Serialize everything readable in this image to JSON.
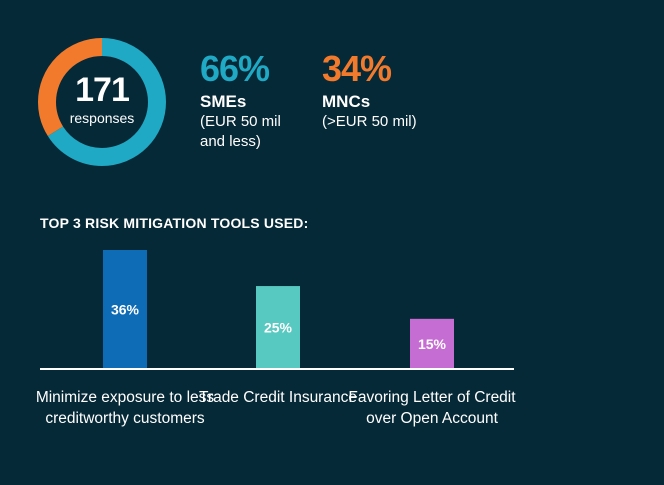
{
  "summary": {
    "responses_count": "171",
    "responses_label": "responses",
    "sme_share": 66,
    "mnc_share": 34
  },
  "segments": {
    "sme": {
      "pct": "66%",
      "name": "SMEs",
      "desc": "(EUR 50 mil and less)",
      "color": "#1fa9c4"
    },
    "mnc": {
      "pct": "34%",
      "name": "MNCs",
      "desc": "(>EUR 50 mil)",
      "color": "#f27a2c"
    }
  },
  "chart_data": {
    "type": "bar",
    "title": "TOP 3 RISK MITIGATION TOOLS USED:",
    "categories": [
      "Minimize exposure to less creditworthy customers",
      "Trade Credit Insurance",
      "Favoring Letter of Credit over Open Account"
    ],
    "values": [
      36,
      25,
      15
    ],
    "value_labels": [
      "36%",
      "25%",
      "15%"
    ],
    "colors": [
      "#0e6bb5",
      "#58c9c0",
      "#c56dd2"
    ],
    "ylim": [
      0,
      40
    ],
    "xlabel": "",
    "ylabel": "",
    "grid": false
  }
}
